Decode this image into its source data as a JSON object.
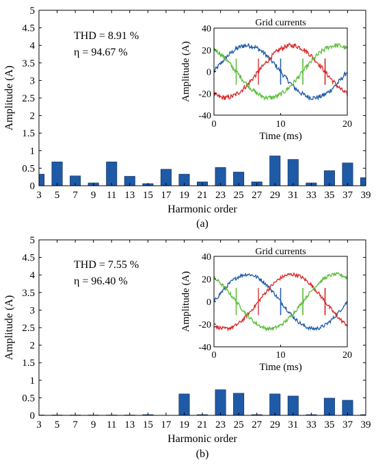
{
  "panels": [
    {
      "caption": "(a)",
      "annotation": {
        "thd": "THD = 8.91 %",
        "eta": "η = 94.67 %"
      },
      "chart_data": {
        "type": "bar",
        "xlabel": "Harmonic order",
        "ylabel": "Amplitude (A)",
        "ylim": [
          0,
          5
        ],
        "yticks": [
          "0",
          "0.5",
          "1",
          "1.5",
          "2",
          "2.5",
          "3",
          "3.5",
          "4",
          "4.5",
          "5"
        ],
        "categories": [
          "3",
          "5",
          "7",
          "9",
          "11",
          "13",
          "15",
          "17",
          "19",
          "21",
          "23",
          "25",
          "27",
          "29",
          "31",
          "33",
          "35",
          "37",
          "39"
        ],
        "values": [
          0.33,
          0.68,
          0.28,
          0.08,
          0.68,
          0.27,
          0.06,
          0.47,
          0.33,
          0.11,
          0.52,
          0.39,
          0.11,
          0.85,
          0.75,
          0.08,
          0.43,
          0.65,
          0.23
        ],
        "color": "#1F5AA6"
      },
      "inset": {
        "chart_data": {
          "type": "line",
          "title": "Grid currents",
          "xlabel": "Time (ms)",
          "ylabel": "Amplitude (A)",
          "xlim": [
            0,
            20
          ],
          "ylim": [
            -40,
            40
          ],
          "xticks": [
            "0",
            "10",
            "20"
          ],
          "yticks": [
            "-40",
            "-20",
            "0",
            "20",
            "40"
          ],
          "series": [
            {
              "color": "#1F5AA6",
              "amplitude": 24,
              "phase_deg": 0,
              "noise": 2.2
            },
            {
              "color": "#D62728",
              "amplitude": 24,
              "phase_deg": -120,
              "noise": 2.2
            },
            {
              "color": "#5DBE3A",
              "amplitude": 24,
              "phase_deg": 120,
              "noise": 2.2
            }
          ]
        }
      }
    },
    {
      "caption": "(b)",
      "annotation": {
        "thd": "THD = 7.55 %",
        "eta": "η = 96.40 %"
      },
      "chart_data": {
        "type": "bar",
        "xlabel": "Harmonic order",
        "ylabel": "Amplitude (A)",
        "ylim": [
          0,
          5
        ],
        "yticks": [
          "0",
          "0.5",
          "1",
          "1.5",
          "2",
          "2.5",
          "3",
          "3.5",
          "4",
          "4.5",
          "5"
        ],
        "categories": [
          "3",
          "5",
          "7",
          "9",
          "11",
          "13",
          "15",
          "17",
          "19",
          "21",
          "23",
          "25",
          "27",
          "29",
          "31",
          "33",
          "35",
          "37",
          "39"
        ],
        "values": [
          0.01,
          0.01,
          0.01,
          0.01,
          0.01,
          0.01,
          0.02,
          0.0,
          0.61,
          0.02,
          0.73,
          0.63,
          0.02,
          0.61,
          0.55,
          0.02,
          0.49,
          0.43,
          0.02
        ],
        "color": "#1F5AA6"
      },
      "inset": {
        "chart_data": {
          "type": "line",
          "title": "Grid currents",
          "xlabel": "Time (ms)",
          "ylabel": "Amplitude (A)",
          "xlim": [
            0,
            20
          ],
          "ylim": [
            -40,
            40
          ],
          "xticks": [
            "0",
            "10",
            "20"
          ],
          "yticks": [
            "-40",
            "-20",
            "0",
            "20",
            "40"
          ],
          "series": [
            {
              "color": "#1F5AA6",
              "amplitude": 24,
              "phase_deg": 0,
              "noise": 1.6
            },
            {
              "color": "#D62728",
              "amplitude": 24,
              "phase_deg": -120,
              "noise": 1.6
            },
            {
              "color": "#5DBE3A",
              "amplitude": 24,
              "phase_deg": 120,
              "noise": 1.6
            }
          ]
        }
      }
    }
  ]
}
